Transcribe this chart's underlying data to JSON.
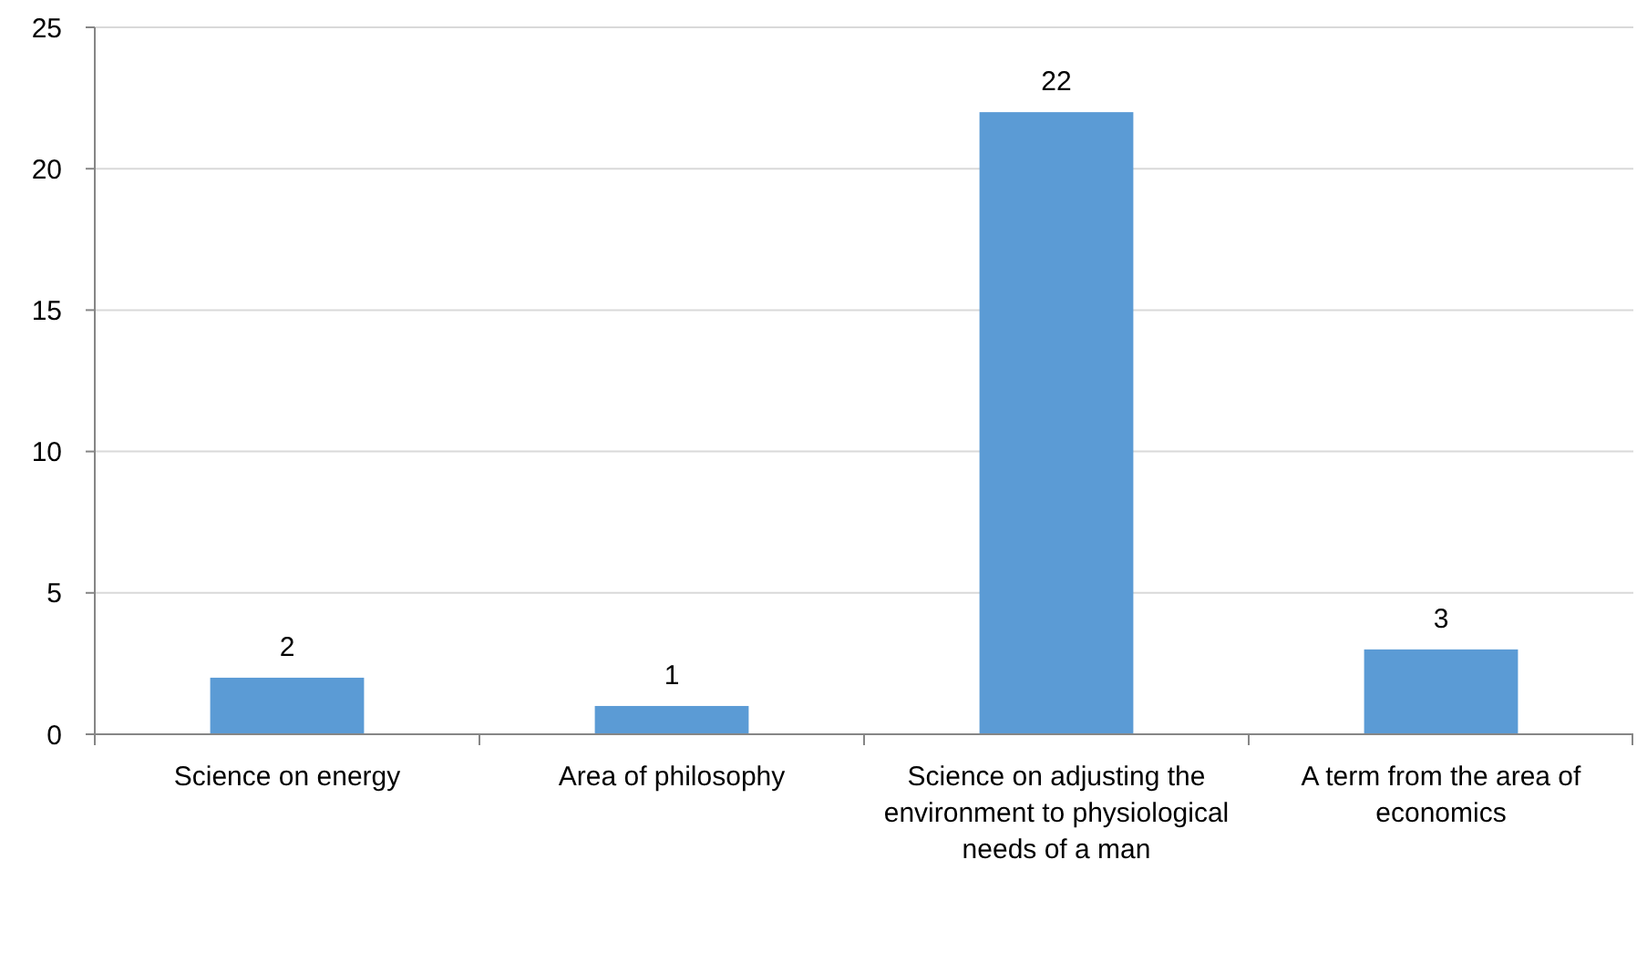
{
  "chart_data": {
    "type": "bar",
    "categories": [
      "Science on energy",
      "Area of philosophy",
      "Science on adjusting the environment to physiological needs of a man",
      "A term from the area of economics"
    ],
    "values": [
      2,
      1,
      22,
      3
    ],
    "color": "#5b9bd5",
    "ylim": [
      0,
      25
    ],
    "yticks": [
      0,
      5,
      10,
      15,
      20,
      25
    ],
    "grid": "y",
    "data_labels": true
  }
}
